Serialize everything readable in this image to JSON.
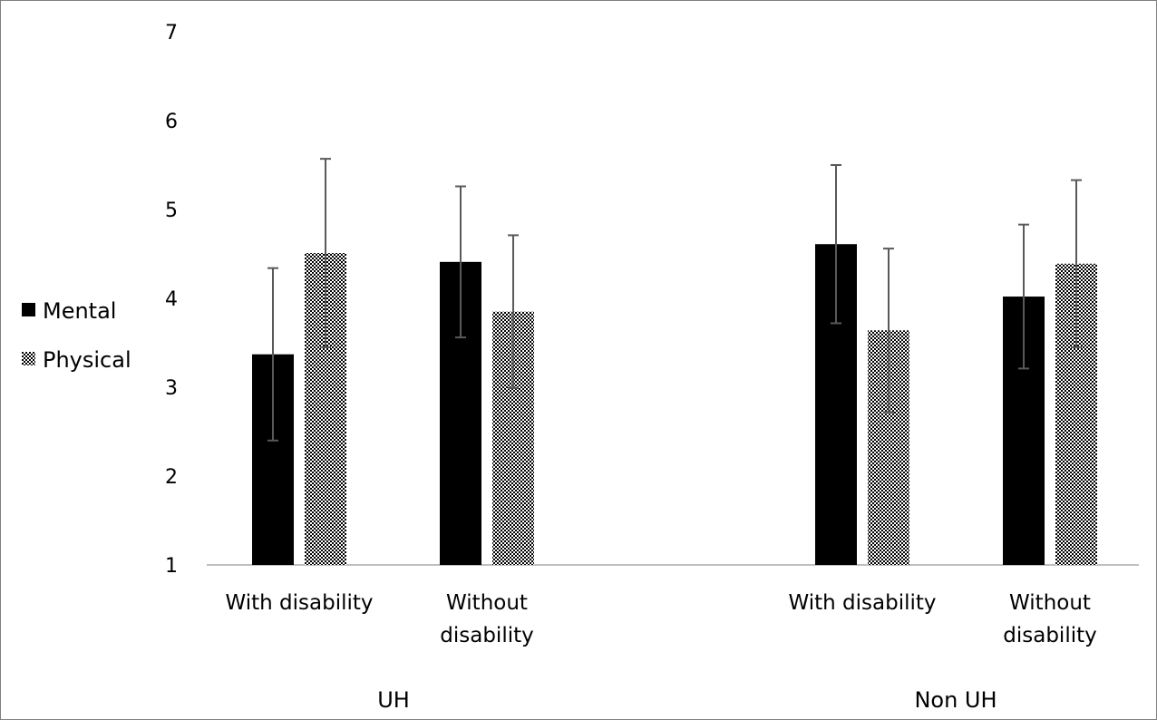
{
  "chart_data": {
    "type": "bar",
    "title": "",
    "xlabel": "",
    "ylabel": "",
    "ylim": [
      1,
      7
    ],
    "yticks": [
      "1",
      "2",
      "3",
      "4",
      "5",
      "6",
      "7"
    ],
    "groups": [
      {
        "label": "UH",
        "categories": [
          "With disability",
          "Without disability"
        ]
      },
      {
        "label": "Non UH",
        "categories": [
          "With disability",
          "Without disability"
        ]
      }
    ],
    "category_lines": {
      "With disability": [
        "With disability"
      ],
      "Without disability": [
        "Without",
        "disability"
      ]
    },
    "series": [
      {
        "name": "Mental",
        "color": "#000000",
        "pattern": "solid",
        "values": [
          3.37,
          4.41,
          4.61,
          4.02
        ],
        "error": [
          0.97,
          0.85,
          0.89,
          0.81
        ]
      },
      {
        "name": "Physical",
        "color": "#000000",
        "pattern": "checker",
        "values": [
          4.51,
          3.85,
          3.64,
          4.39
        ],
        "error": [
          1.06,
          0.86,
          0.92,
          0.94
        ]
      }
    ],
    "legend": "left",
    "grid": false
  }
}
